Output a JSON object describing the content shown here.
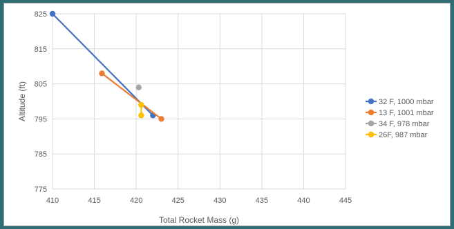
{
  "chart_data": {
    "type": "scatter",
    "title": "",
    "xlabel": "Total Rocket Mass (g)",
    "ylabel": "Altitude (ft)",
    "xlim": [
      410,
      445
    ],
    "ylim": [
      775,
      825
    ],
    "xticks": [
      410,
      415,
      420,
      425,
      430,
      435,
      440,
      445
    ],
    "yticks": [
      775,
      785,
      795,
      805,
      815,
      825
    ],
    "grid": true,
    "legend_position": "right",
    "series": [
      {
        "name": "32 F, 1000 mbar",
        "color": "#4472C4",
        "x": [
          410.0,
          422.0
        ],
        "y": [
          825.0,
          796.0
        ]
      },
      {
        "name": "13 F, 1001 mbar",
        "color": "#ED7D31",
        "x": [
          415.9,
          423.0
        ],
        "y": [
          808.0,
          795.0
        ]
      },
      {
        "name": "34 F, 978 mbar",
        "color": "#A5A5A5",
        "x": [
          420.3
        ],
        "y": [
          804.0
        ]
      },
      {
        "name": "26F, 987 mbar",
        "color": "#FFC000",
        "x": [
          420.6,
          420.6
        ],
        "y": [
          799.0,
          796.0
        ]
      }
    ]
  }
}
